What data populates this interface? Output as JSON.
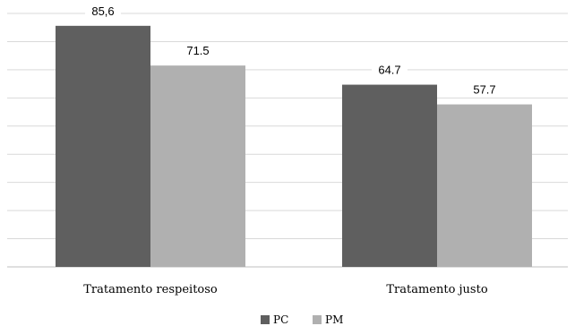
{
  "chart_data": {
    "type": "bar",
    "categories": [
      "Tratamento respeitoso",
      "Tratamento justo"
    ],
    "series": [
      {
        "name": "PC",
        "values": [
          85.6,
          64.7
        ],
        "labels": [
          "85,6",
          "64.7"
        ],
        "color": "#5f5f5f"
      },
      {
        "name": "PM",
        "values": [
          71.5,
          57.7
        ],
        "labels": [
          "71.5",
          "57.7"
        ],
        "color": "#b0b0b0"
      }
    ],
    "ylim": [
      0,
      90
    ],
    "grid": true,
    "legend_position": "bottom",
    "gridline_color": "#d9d9d9"
  }
}
